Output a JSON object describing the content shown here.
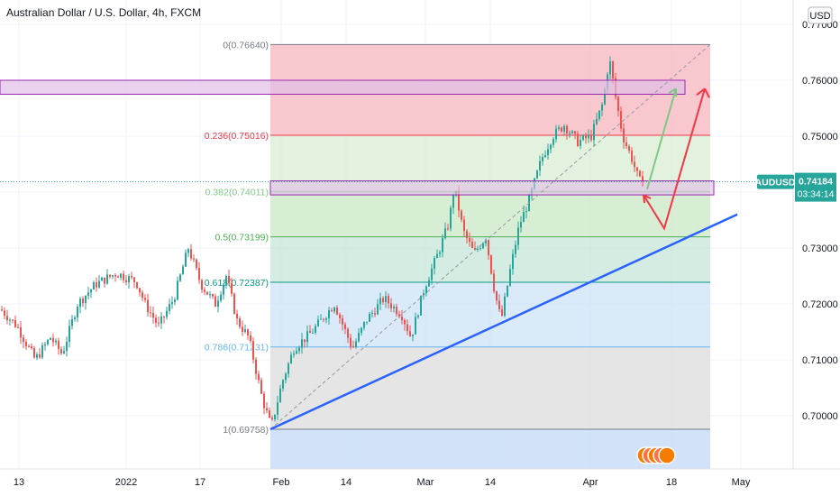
{
  "chart_data": {
    "type": "candlestick",
    "title": "Australian Dollar / U.S. Dollar, 4h, FXCM",
    "currency_button": "USD",
    "symbol": "AUDUSD",
    "last_price": "0.74184",
    "countdown": "03:34:14",
    "y_axis": {
      "ylim": [
        0.692,
        0.7765
      ],
      "ticks": [
        "0.70000",
        "0.71000",
        "0.72000",
        "0.73000",
        "0.75000",
        "0.76000",
        "0.77000"
      ]
    },
    "x_axis": {
      "ticks": [
        "13",
        "2022",
        "17",
        "Feb",
        "14",
        "Mar",
        "14",
        "Apr",
        "18",
        "May"
      ]
    },
    "fibonacci": {
      "levels": [
        {
          "ratio": 0,
          "price": 0.7664,
          "label": "0(0.76640)",
          "color": "#787b86"
        },
        {
          "ratio": 0.236,
          "price": 0.75016,
          "label": "0.236(0.75016)",
          "color": "#f23645"
        },
        {
          "ratio": 0.382,
          "price": 0.74011,
          "label": "0.382(0.74011)",
          "color": "#81c784"
        },
        {
          "ratio": 0.5,
          "price": 0.73199,
          "label": "0.5(0.73199)",
          "color": "#4caf50"
        },
        {
          "ratio": 0.618,
          "price": 0.72387,
          "label": "0.618(0.72387)",
          "color": "#089981"
        },
        {
          "ratio": 0.786,
          "price": 0.7123,
          "label": "0.786(0.71231)",
          "color": "#64b5f6"
        },
        {
          "ratio": 1,
          "price": 0.69758,
          "label": "1(0.69758)",
          "color": "#787b86"
        }
      ],
      "zone_colors": [
        "#f7b6bd",
        "#d9eed3",
        "#cbe8c6",
        "#c6e6d7",
        "#cfe3f7",
        "#dcdcdc",
        "#c3d9f7"
      ]
    },
    "annotations": {
      "resistance_box_price": [
        0.7575,
        0.76
      ],
      "support_box_price": [
        0.7395,
        0.742
      ],
      "trendline": {
        "from_price": 0.69758,
        "to_price": 0.736
      },
      "green_arrow": {
        "from_price": 0.7405,
        "to_price": 0.7585
      },
      "red_path_prices": [
        0.7395,
        0.7335,
        0.7585
      ],
      "colors": {
        "trend": "#2962ff",
        "green_arrow": "#81c784",
        "red_arrow": "#f23645",
        "box_stroke": "#9c27b0",
        "box_fill": "#e1bee7"
      }
    }
  }
}
